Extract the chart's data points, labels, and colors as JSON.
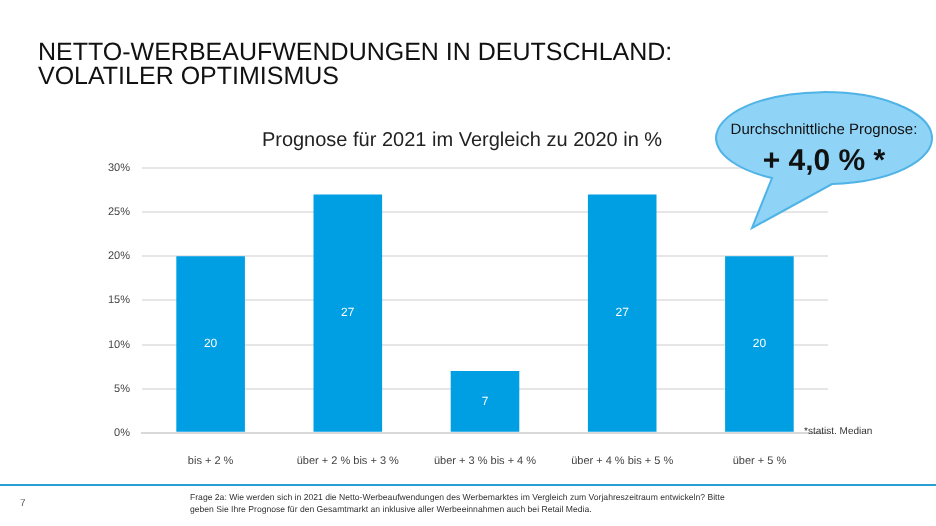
{
  "chart_data": {
    "type": "bar",
    "title": "NETTO-WERBEAUFWENDUNGEN IN DEUTSCHLAND:\nVOLATILER OPTIMISMUS",
    "subtitle": "Prognose für 2021 im Vergleich zu 2020 in %",
    "categories": [
      "bis + 2 %",
      "über + 2 % bis + 3 %",
      "über + 3 % bis + 4 %",
      "über + 4 % bis + 5 %",
      "über + 5 %"
    ],
    "values": [
      20,
      27,
      7,
      27,
      20
    ],
    "color": "#009fe3",
    "data_labels": true,
    "ylim": [
      0,
      30
    ],
    "yticks": [
      {
        "value": 0,
        "label": "0%"
      },
      {
        "value": 5,
        "label": "5%"
      },
      {
        "value": 10,
        "label": "10%"
      },
      {
        "value": 15,
        "label": "15%"
      },
      {
        "value": 20,
        "label": "20%"
      },
      {
        "value": 25,
        "label": "25%"
      },
      {
        "value": 30,
        "label": "30%"
      }
    ],
    "grid": "y",
    "legend": false,
    "annotations": [
      "Durchschnittliche Prognose:",
      "+ 4,0 % *",
      "*statist. Median",
      "Frage 2a: Wie werden sich in 2021 die Netto-Werbeaufwendungen des Werbemarktes im Vergleich zum Vorjahreszeitraum entwickeln? Bitte geben Sie Ihre Prognose für den Gesamtmarkt an inklusive aller Werbeeinnahmen auch bei Retail Media.",
      "7"
    ]
  }
}
